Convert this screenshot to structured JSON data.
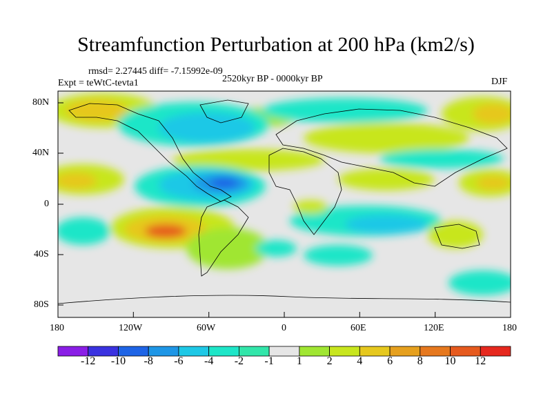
{
  "title": "Streamfunction Perturbation at 200 hPa (km2/s)",
  "stats": "rmsd= 2.27445 diff= -7.15992e-09",
  "period": "2520kyr BP - 0000kyr BP",
  "experiment": "Expt = teWtC-tevta1",
  "season": "DJF",
  "lat_labels": [
    "80N",
    "40N",
    "0",
    "40S",
    "80S"
  ],
  "lon_labels": [
    "180",
    "120W",
    "60W",
    "0",
    "60E",
    "120E",
    "180"
  ],
  "colorbar": {
    "labels": [
      "-12",
      "-10",
      "-8",
      "-6",
      "-4",
      "-2",
      "-1",
      "1",
      "2",
      "4",
      "6",
      "8",
      "10",
      "12"
    ],
    "colors": [
      "#8a1ee6",
      "#3a32e0",
      "#1e64e6",
      "#1e96e6",
      "#1ec8e6",
      "#1ee6c8",
      "#32e6aa",
      "#e6e6e6",
      "#a0e632",
      "#c8e61e",
      "#e6c81e",
      "#e6a01e",
      "#e6781e",
      "#e65a1e",
      "#e6281e"
    ]
  }
}
